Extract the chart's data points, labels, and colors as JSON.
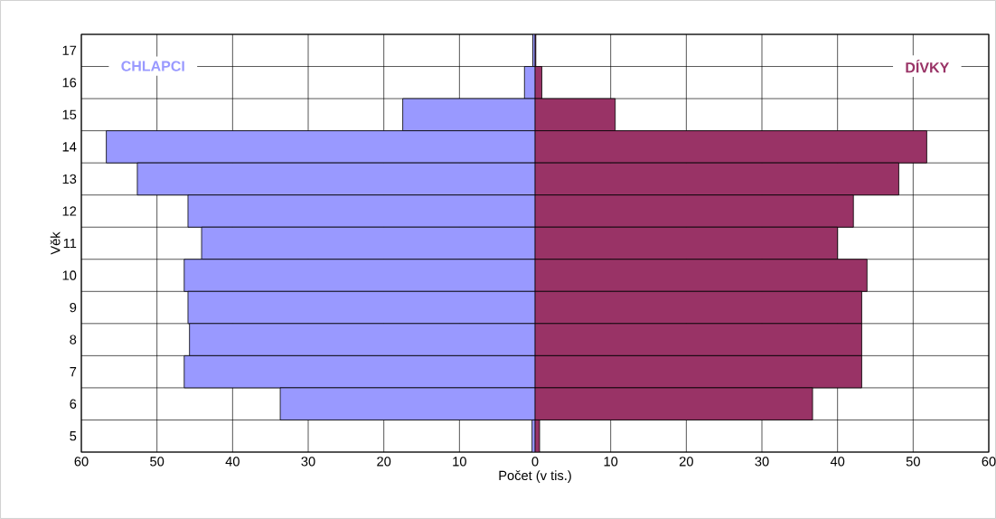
{
  "chart_data": {
    "type": "bar",
    "orientation": "horizontal",
    "xlabel": "Počet (v tis.)",
    "ylabel": "Věk",
    "categories": [
      "17",
      "16",
      "15",
      "14",
      "13",
      "12",
      "11",
      "10",
      "9",
      "8",
      "7",
      "6",
      "5"
    ],
    "series": [
      {
        "name": "CHLAPCI",
        "color": "#9999ff",
        "values": [
          -0.3,
          -1.4,
          -17.5,
          -56.7,
          -52.6,
          -45.9,
          -44.1,
          -46.4,
          -45.9,
          -45.7,
          -46.4,
          -33.7,
          -0.4
        ]
      },
      {
        "name": "DÍVKY",
        "color": "#993366",
        "values": [
          0.1,
          0.9,
          10.6,
          51.8,
          48.1,
          42.1,
          40.0,
          43.9,
          43.2,
          43.2,
          43.2,
          36.7,
          0.6
        ]
      }
    ],
    "xlim": [
      -60,
      60
    ],
    "xticks": [
      {
        "value": -60,
        "label": "60"
      },
      {
        "value": -50,
        "label": "50"
      },
      {
        "value": -40,
        "label": "40"
      },
      {
        "value": -30,
        "label": "30"
      },
      {
        "value": -20,
        "label": "20"
      },
      {
        "value": -10,
        "label": "10"
      },
      0,
      10,
      20,
      30,
      40,
      50,
      60
    ],
    "grid": true,
    "stacked": true
  }
}
